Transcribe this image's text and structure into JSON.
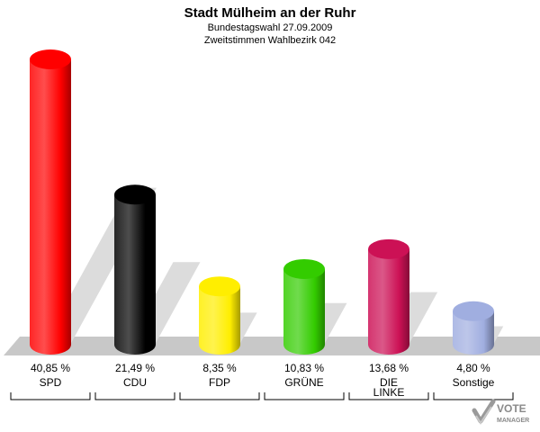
{
  "chart_data": {
    "type": "bar",
    "title": "Stadt Mülheim an der Ruhr",
    "subtitle_1": "Bundestagswahl 27.09.2009",
    "subtitle_2": "Zweitstimmen Wahlbezirk 042",
    "categories": [
      "SPD",
      "CDU",
      "FDP",
      "GRÜNE",
      "DIE LINKE",
      "Sonstige"
    ],
    "values": [
      40.85,
      21.49,
      8.35,
      10.83,
      13.68,
      4.8
    ],
    "value_labels": [
      "40,85 %",
      "21,49 %",
      "8,35 %",
      "10,83 %",
      "13,68 %",
      "4,80 %"
    ],
    "colors": [
      "#ff0000",
      "#000000",
      "#ffee00",
      "#33cc00",
      "#cc1155",
      "#a0aee0"
    ],
    "ylim": [
      0,
      42
    ],
    "grid": false,
    "legend": "none"
  },
  "logo": {
    "line1": "VOTE",
    "line2": "MANAGER"
  }
}
